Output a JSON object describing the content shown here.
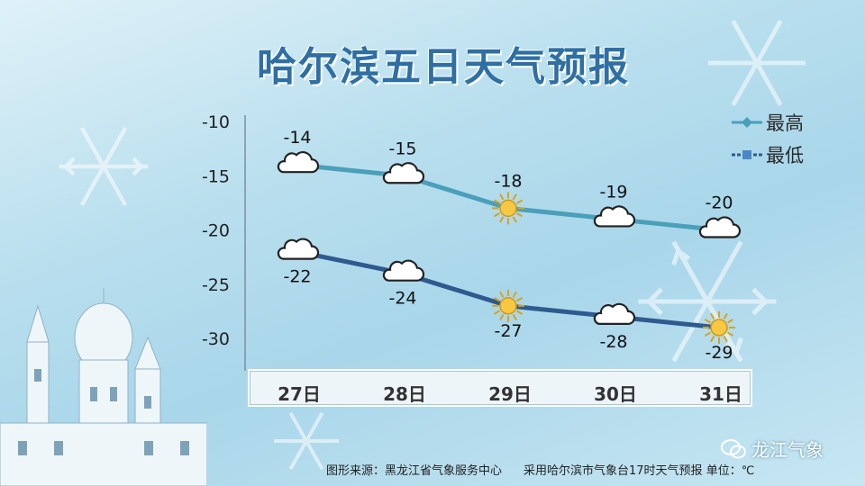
{
  "title": "哈尔滨五日天气预报",
  "chart_data": {
    "type": "line",
    "categories": [
      "27日",
      "28日",
      "29日",
      "30日",
      "31日"
    ],
    "series": [
      {
        "name": "最高",
        "values": [
          -14,
          -15,
          -18,
          -19,
          -20
        ],
        "color": "#4a9fba",
        "weather": [
          "cloudy",
          "cloudy",
          "sunny",
          "cloudy",
          "cloudy"
        ]
      },
      {
        "name": "最低",
        "values": [
          -22,
          -24,
          -27,
          -28,
          -29
        ],
        "color": "#2e5a8f",
        "weather": [
          "cloudy",
          "cloudy",
          "sunny",
          "cloudy",
          "sunny"
        ]
      }
    ],
    "ylim": [
      -30,
      -10
    ],
    "yticks": [
      -10,
      -15,
      -20,
      -25,
      -30
    ],
    "grid": false,
    "legend_position": "top-right"
  },
  "footer": {
    "source": "图形来源：黑龙江省气象服务中心",
    "note": "采用哈尔滨市气象台17时天气预报 单位：℃"
  },
  "brand": "龙江气象"
}
